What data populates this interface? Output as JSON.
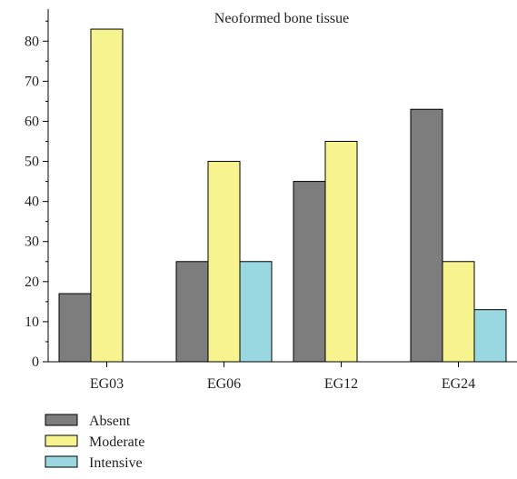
{
  "chart_data": {
    "type": "bar",
    "title": "Neoformed bone tissue",
    "xlabel": "",
    "ylabel": "",
    "categories": [
      "EG03",
      "EG06",
      "EG12",
      "EG24"
    ],
    "series": [
      {
        "name": "Absent",
        "values": [
          17,
          25,
          45,
          63
        ],
        "color": "#7d7d7d"
      },
      {
        "name": "Moderate",
        "values": [
          83,
          50,
          55,
          25
        ],
        "color": "#f7f48f"
      },
      {
        "name": "Intensive",
        "values": [
          0,
          25,
          0,
          13
        ],
        "color": "#9ad8e1"
      }
    ],
    "ylim": [
      0,
      88
    ],
    "yticks": [
      0,
      10,
      20,
      30,
      40,
      50,
      60,
      70,
      80
    ],
    "grid": false,
    "legend_position": "bottom-left"
  }
}
